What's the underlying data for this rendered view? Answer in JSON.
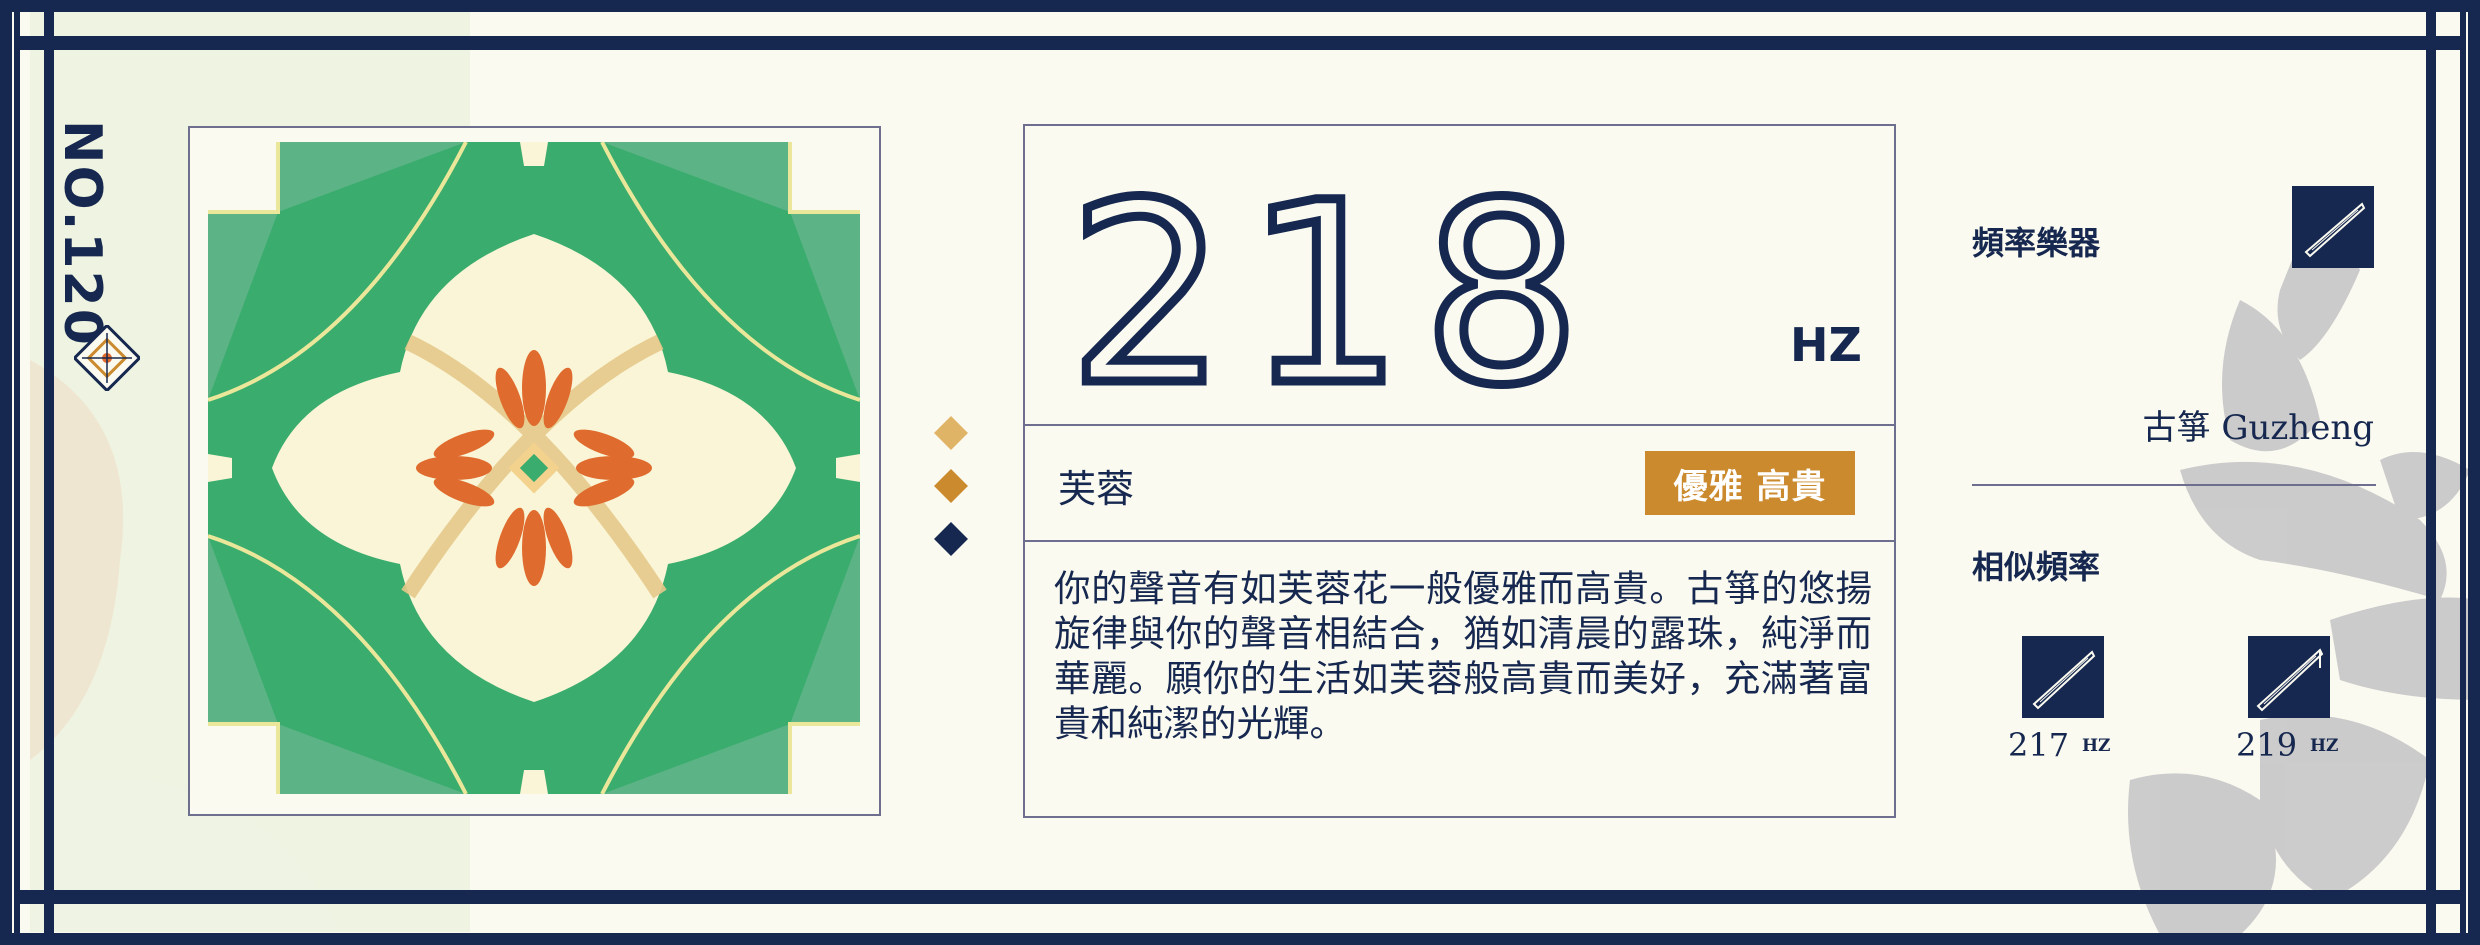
{
  "card": {
    "number": "NO.120",
    "frequency": "218",
    "unit": "HZ",
    "flower": "芙蓉",
    "badge": "優雅 高貴",
    "description": "你的聲音有如芙蓉花一般優雅而高貴。古箏的悠揚旋律與你的聲音相結合，猶如清晨的露珠，純淨而華麗。願你的生活如芙蓉般高貴而美好，充滿著富貴和純潔的光輝。"
  },
  "side": {
    "instrument_title": "頻率樂器",
    "instrument_name": "古箏 Guzheng",
    "similar_title": "相似頻率",
    "similar": [
      {
        "value": "217",
        "unit": "HZ"
      },
      {
        "value": "219",
        "unit": "HZ"
      }
    ]
  },
  "colors": {
    "navy": "#16284f",
    "cream": "#fbfaf0",
    "green": "#3aac6d",
    "light_green": "#5bb386",
    "gold": "#cb8a2d",
    "tan": "#e0b466",
    "orange": "#e06b2e"
  },
  "icons": [
    "guzheng-icon",
    "diamond-ornament-icon",
    "flower-tile-icon"
  ]
}
